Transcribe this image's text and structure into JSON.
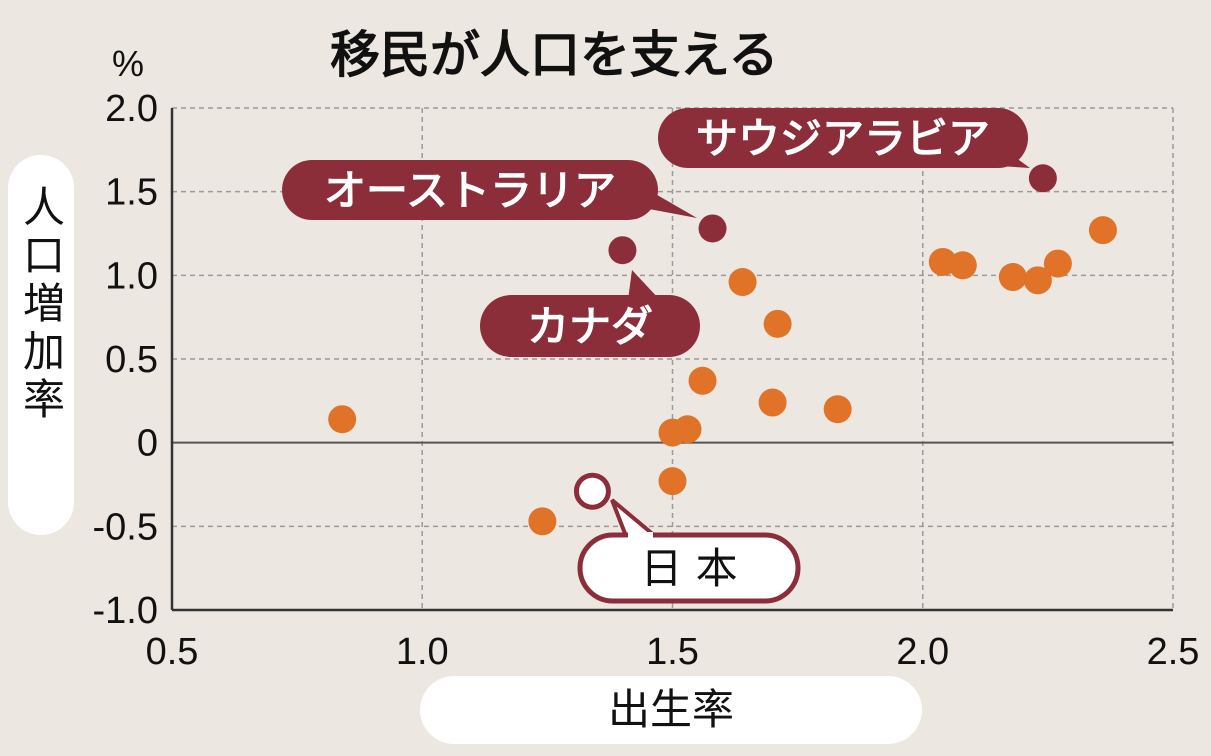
{
  "chart_data": {
    "type": "scatter",
    "title": "移民が人口を支える",
    "xlabel": "出生率",
    "ylabel": "人口増加率",
    "y_unit": "%",
    "xlim": [
      0.5,
      2.5
    ],
    "ylim": [
      -1.0,
      2.0
    ],
    "x_ticks": [
      "0.5",
      "1.0",
      "1.5",
      "2.0",
      "2.5"
    ],
    "y_ticks": [
      "2.0",
      "1.5",
      "1.0",
      "0.5",
      "0",
      "-0.5",
      "-1.0"
    ],
    "grid": true,
    "colors": {
      "points": "#e07328",
      "highlight": "#8b2e3a",
      "japan_fill": "#ffffff"
    },
    "points": [
      {
        "x": 0.84,
        "y": 0.14
      },
      {
        "x": 1.24,
        "y": -0.47
      },
      {
        "x": 1.5,
        "y": 0.06
      },
      {
        "x": 1.53,
        "y": 0.08
      },
      {
        "x": 1.5,
        "y": -0.23
      },
      {
        "x": 1.56,
        "y": 0.37
      },
      {
        "x": 1.64,
        "y": 0.96
      },
      {
        "x": 1.71,
        "y": 0.71
      },
      {
        "x": 1.7,
        "y": 0.24
      },
      {
        "x": 1.83,
        "y": 0.2
      },
      {
        "x": 2.04,
        "y": 1.08
      },
      {
        "x": 2.08,
        "y": 1.06
      },
      {
        "x": 2.18,
        "y": 0.99
      },
      {
        "x": 2.23,
        "y": 0.97
      },
      {
        "x": 2.27,
        "y": 1.07
      },
      {
        "x": 2.36,
        "y": 1.27
      }
    ],
    "highlighted": [
      {
        "label": "オーストラリア",
        "x": 1.58,
        "y": 1.28
      },
      {
        "label": "カナダ",
        "x": 1.4,
        "y": 1.15
      },
      {
        "label": "サウジアラビア",
        "x": 2.24,
        "y": 1.58
      },
      {
        "label": "日 本",
        "x": 1.34,
        "y": -0.29
      }
    ]
  }
}
